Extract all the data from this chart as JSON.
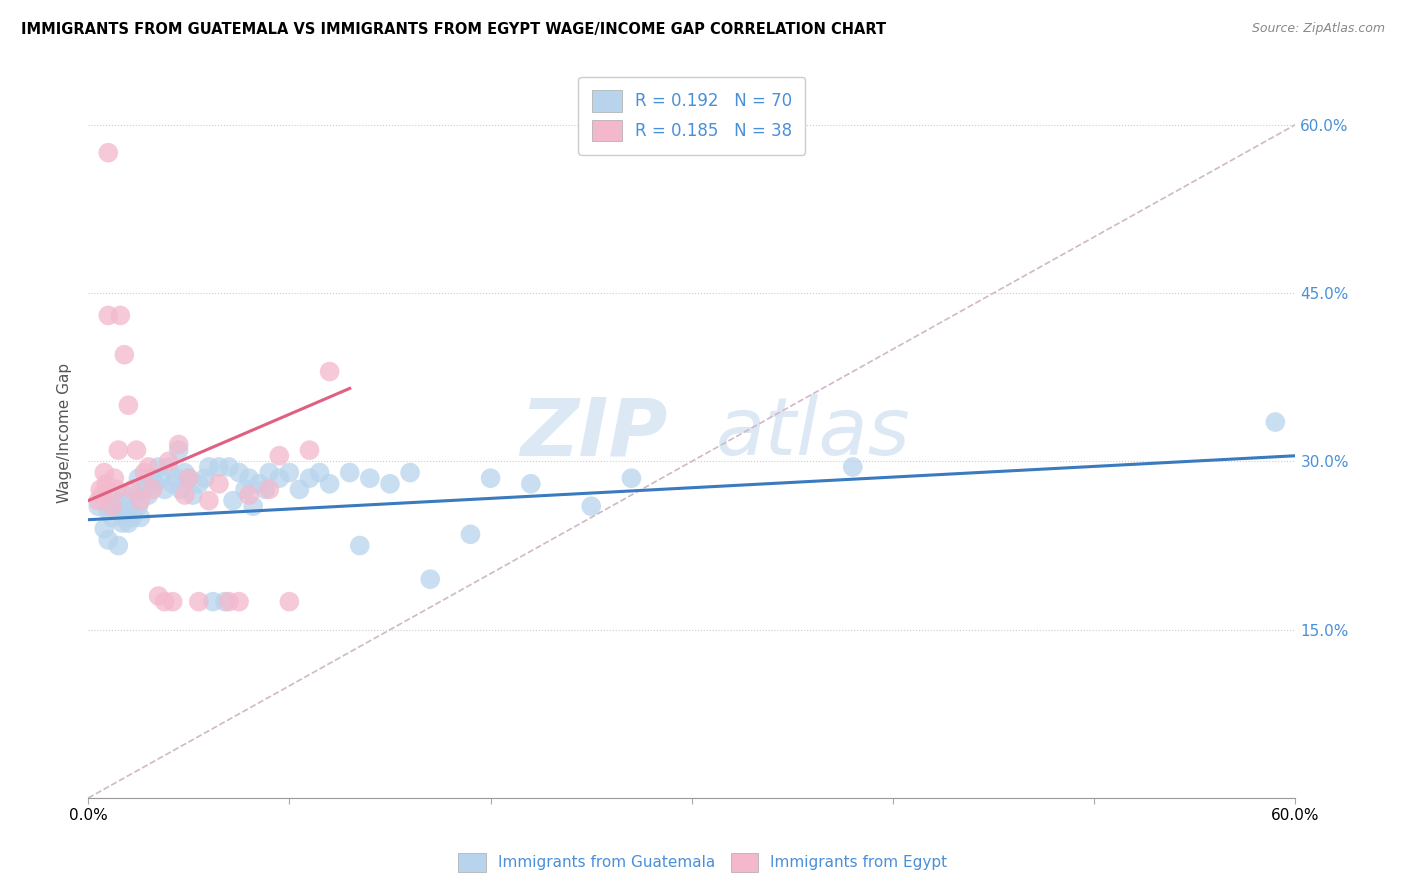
{
  "title": "IMMIGRANTS FROM GUATEMALA VS IMMIGRANTS FROM EGYPT WAGE/INCOME GAP CORRELATION CHART",
  "source": "Source: ZipAtlas.com",
  "ylabel": "Wage/Income Gap",
  "watermark_zip": "ZIP",
  "watermark_atlas": "atlas",
  "xlim": [
    0.0,
    0.6
  ],
  "ylim": [
    0.0,
    0.65
  ],
  "yticks": [
    0.0,
    0.15,
    0.3,
    0.45,
    0.6
  ],
  "ytick_labels": [
    "",
    "15.0%",
    "30.0%",
    "45.0%",
    "60.0%"
  ],
  "xticks": [
    0.0,
    0.1,
    0.2,
    0.3,
    0.4,
    0.5,
    0.6
  ],
  "xtick_labels": [
    "0.0%",
    "",
    "",
    "",
    "",
    "",
    "60.0%"
  ],
  "legend_r1": "R = 0.192",
  "legend_n1": "N = 70",
  "legend_r2": "R = 0.185",
  "legend_n2": "N = 38",
  "color_guatemala_fill": "#b8d4ec",
  "color_guatemala_edge": "#6aaed6",
  "color_egypt_fill": "#f4b8cc",
  "color_egypt_edge": "#e87ca0",
  "color_trendline_blue": "#3a7abf",
  "color_trendline_pink": "#e06080",
  "color_dashed": "#d0b8c8",
  "guatemala_x": [
    0.005,
    0.008,
    0.01,
    0.01,
    0.012,
    0.013,
    0.015,
    0.015,
    0.016,
    0.017,
    0.018,
    0.018,
    0.02,
    0.02,
    0.022,
    0.022,
    0.024,
    0.025,
    0.025,
    0.026,
    0.028,
    0.03,
    0.03,
    0.032,
    0.033,
    0.035,
    0.036,
    0.038,
    0.04,
    0.042,
    0.044,
    0.045,
    0.046,
    0.048,
    0.05,
    0.052,
    0.055,
    0.058,
    0.06,
    0.062,
    0.065,
    0.068,
    0.07,
    0.072,
    0.075,
    0.078,
    0.08,
    0.082,
    0.085,
    0.088,
    0.09,
    0.095,
    0.1,
    0.105,
    0.11,
    0.115,
    0.12,
    0.13,
    0.135,
    0.14,
    0.15,
    0.16,
    0.17,
    0.19,
    0.2,
    0.22,
    0.25,
    0.27,
    0.38,
    0.59
  ],
  "guatemala_y": [
    0.26,
    0.24,
    0.255,
    0.23,
    0.25,
    0.265,
    0.26,
    0.225,
    0.255,
    0.245,
    0.27,
    0.25,
    0.265,
    0.245,
    0.255,
    0.25,
    0.27,
    0.285,
    0.26,
    0.25,
    0.275,
    0.285,
    0.27,
    0.285,
    0.28,
    0.295,
    0.285,
    0.275,
    0.295,
    0.28,
    0.285,
    0.31,
    0.275,
    0.29,
    0.285,
    0.27,
    0.28,
    0.285,
    0.295,
    0.175,
    0.295,
    0.175,
    0.295,
    0.265,
    0.29,
    0.275,
    0.285,
    0.26,
    0.28,
    0.275,
    0.29,
    0.285,
    0.29,
    0.275,
    0.285,
    0.29,
    0.28,
    0.29,
    0.225,
    0.285,
    0.28,
    0.29,
    0.195,
    0.235,
    0.285,
    0.28,
    0.26,
    0.285,
    0.295,
    0.335
  ],
  "egypt_x": [
    0.005,
    0.006,
    0.007,
    0.008,
    0.009,
    0.01,
    0.01,
    0.012,
    0.013,
    0.014,
    0.015,
    0.016,
    0.018,
    0.02,
    0.022,
    0.024,
    0.026,
    0.028,
    0.03,
    0.032,
    0.035,
    0.038,
    0.04,
    0.042,
    0.045,
    0.048,
    0.05,
    0.055,
    0.06,
    0.065,
    0.07,
    0.075,
    0.08,
    0.09,
    0.095,
    0.1,
    0.11,
    0.12
  ],
  "egypt_y": [
    0.265,
    0.275,
    0.27,
    0.29,
    0.28,
    0.43,
    0.575,
    0.26,
    0.285,
    0.275,
    0.31,
    0.43,
    0.395,
    0.35,
    0.275,
    0.31,
    0.265,
    0.29,
    0.295,
    0.275,
    0.18,
    0.175,
    0.3,
    0.175,
    0.315,
    0.27,
    0.285,
    0.175,
    0.265,
    0.28,
    0.175,
    0.175,
    0.27,
    0.275,
    0.305,
    0.175,
    0.31,
    0.38
  ]
}
